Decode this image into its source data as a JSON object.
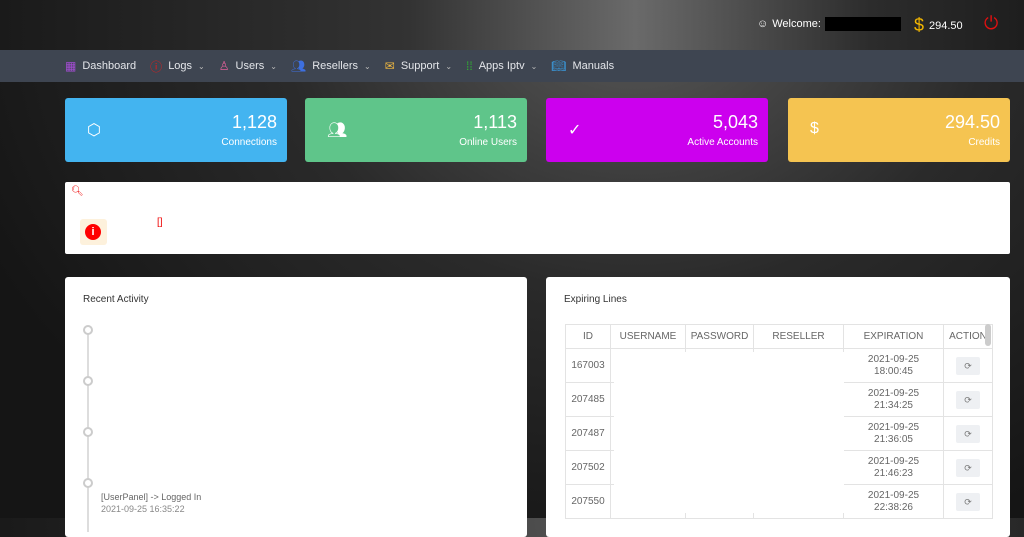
{
  "header": {
    "welcome_label": "Welcome:",
    "credits": "294.50"
  },
  "nav": {
    "items": [
      {
        "label": "Dashboard",
        "icon": "dashboard-icon",
        "color": "#a64dd6",
        "chevron": false
      },
      {
        "label": "Logs",
        "icon": "logs-icon",
        "color": "#e51b1b",
        "chevron": true
      },
      {
        "label": "Users",
        "icon": "user-icon",
        "color": "#e0609a",
        "chevron": true
      },
      {
        "label": "Resellers",
        "icon": "resellers-icon",
        "color": "#3d6fe0",
        "chevron": true
      },
      {
        "label": "Support",
        "icon": "mail-icon",
        "color": "#f0b840",
        "chevron": true
      },
      {
        "label": "Apps Iptv",
        "icon": "grid-icon",
        "color": "#2eb82e",
        "chevron": true
      },
      {
        "label": "Manuals",
        "icon": "book-icon",
        "color": "#3aa0e8",
        "chevron": false
      }
    ]
  },
  "stats": [
    {
      "value": "1,128",
      "label": "Connections",
      "icon": "cube-icon",
      "color": "#43b4f0"
    },
    {
      "value": "1,113",
      "label": "Online Users",
      "icon": "users-icon",
      "color": "#5fc58a"
    },
    {
      "value": "5,043",
      "label": "Active Accounts",
      "icon": "check-circle-icon",
      "color": "#cc00ee"
    },
    {
      "value": "294.50",
      "label": "Credits",
      "icon": "dollar-icon",
      "color": "#f5c451"
    }
  ],
  "alert": {
    "bracket": "[]"
  },
  "recent": {
    "title": "Recent Activity",
    "entries": [
      {
        "text": "[UserPanel] -> Logged In",
        "time": "2021-09-25 16:35:22"
      }
    ]
  },
  "expiring": {
    "title": "Expiring Lines",
    "columns": [
      "ID",
      "USERNAME",
      "PASSWORD",
      "RESELLER",
      "EXPIRATION",
      "ACTION"
    ],
    "rows": [
      {
        "id": "167003",
        "date": "2021-09-25",
        "time": "18:00:45"
      },
      {
        "id": "207485",
        "date": "2021-09-25",
        "time": "21:34:25"
      },
      {
        "id": "207487",
        "date": "2021-09-25",
        "time": "21:36:05"
      },
      {
        "id": "207502",
        "date": "2021-09-25",
        "time": "21:46:23"
      },
      {
        "id": "207550",
        "date": "2021-09-25",
        "time": "22:38:26"
      }
    ]
  }
}
